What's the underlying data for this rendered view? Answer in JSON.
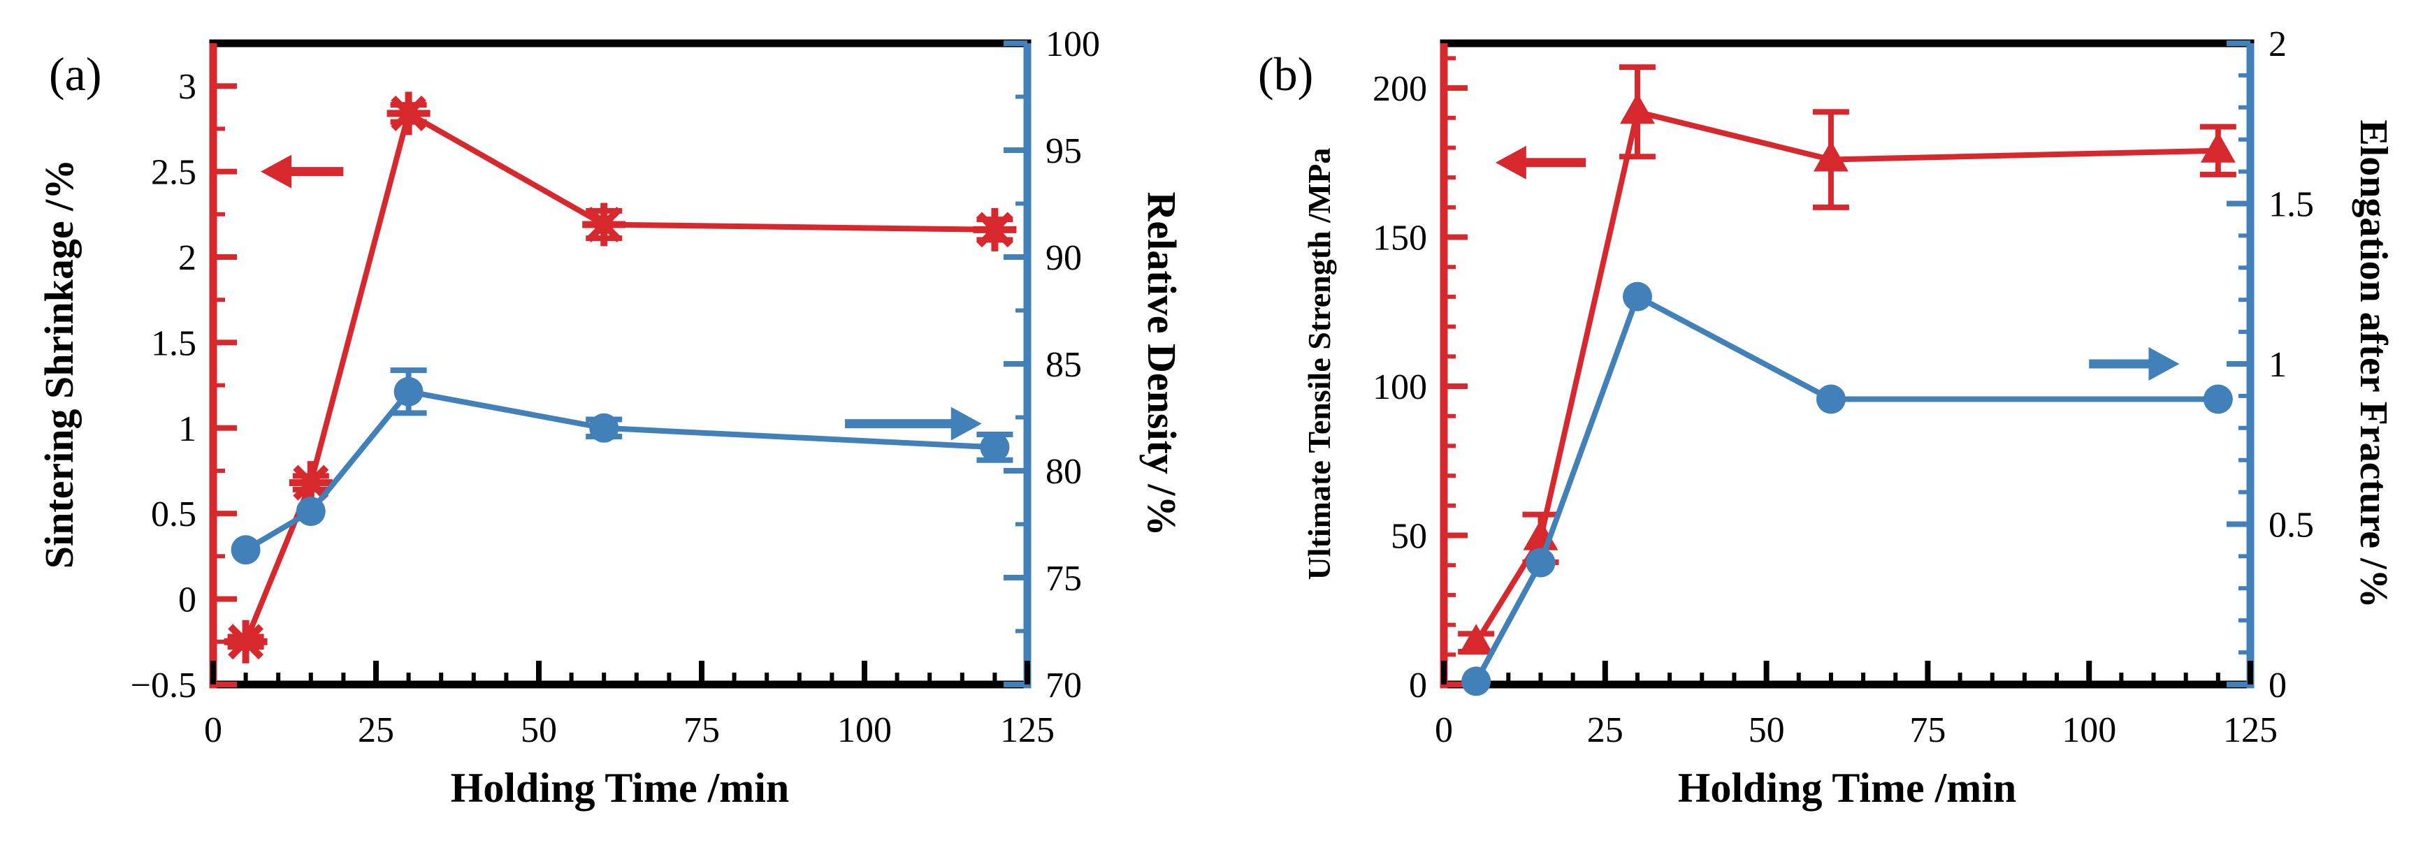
{
  "background": "#ffffff",
  "colors": {
    "red": "#d7282e",
    "blue": "#4180b9",
    "frame": "#000000",
    "text": "#000000"
  },
  "chart_data": [
    {
      "id": "a",
      "type": "line",
      "panel_label": "(a)",
      "xlabel": "Holding Time /min",
      "x_axis": {
        "lim": [
          0,
          125
        ],
        "major_values": [
          0,
          25,
          50,
          75,
          100,
          125
        ],
        "major_labels": [
          "0",
          "25",
          "50",
          "75",
          "100",
          "125"
        ],
        "minor_step": 5
      },
      "left_axis": {
        "title": "Sintering Shrinkage /%",
        "color": "red",
        "lim": [
          -0.5,
          3.25
        ],
        "major_values": [
          -0.5,
          0,
          0.5,
          1,
          1.5,
          2,
          2.5,
          3
        ],
        "major_labels": [
          "−0.5",
          "0",
          "0.5",
          "1",
          "1.5",
          "2",
          "2.5",
          "3"
        ],
        "minor_step": 0.25
      },
      "right_axis": {
        "title": "Relative Density /%",
        "color": "blue",
        "lim": [
          70,
          100
        ],
        "major_values": [
          70,
          75,
          80,
          85,
          90,
          95,
          100
        ],
        "major_labels": [
          "70",
          "75",
          "80",
          "85",
          "90",
          "95",
          "100"
        ],
        "minor_step": 2.5
      },
      "series": [
        {
          "name": "sintering-shrinkage",
          "axis": "left",
          "color": "red",
          "marker": "burst-star",
          "x": [
            5,
            15,
            30,
            60,
            120
          ],
          "y": [
            -0.25,
            0.68,
            2.84,
            2.19,
            2.16
          ],
          "yerr": [
            0.03,
            0.04,
            0.05,
            0.08,
            0.06
          ]
        },
        {
          "name": "relative-density",
          "axis": "right",
          "color": "blue",
          "marker": "circle",
          "x": [
            5,
            15,
            30,
            60,
            120
          ],
          "y": [
            76.3,
            78.1,
            83.7,
            82.0,
            81.1
          ],
          "yerr": [
            0,
            0,
            1.0,
            0.4,
            0.6
          ]
        }
      ],
      "arrows": [
        {
          "color": "red",
          "axis": "left",
          "y": 2.5,
          "x_tail": 20,
          "x_tip": 7.3,
          "dir": "left"
        },
        {
          "color": "blue",
          "axis": "right",
          "y": 82.2,
          "x_tail": 97,
          "x_tip": 118,
          "dir": "right"
        }
      ]
    },
    {
      "id": "b",
      "type": "line",
      "panel_label": "(b)",
      "xlabel": "Holding Time /min",
      "x_axis": {
        "lim": [
          0,
          125
        ],
        "major_values": [
          0,
          25,
          50,
          75,
          100,
          125
        ],
        "major_labels": [
          "0",
          "25",
          "50",
          "75",
          "100",
          "125"
        ],
        "minor_step": 5
      },
      "left_axis": {
        "title": "Ultimate Tensile Strength /MPa",
        "color": "red",
        "lim": [
          0,
          215
        ],
        "major_values": [
          0,
          50,
          100,
          150,
          200
        ],
        "major_labels": [
          "0",
          "50",
          "100",
          "150",
          "200"
        ],
        "minor_step": 10
      },
      "right_axis": {
        "title": "Elongation after Fracture /%",
        "color": "blue",
        "lim": [
          0,
          2
        ],
        "major_values": [
          0,
          0.5,
          1,
          1.5,
          2
        ],
        "major_labels": [
          "0",
          "0.5",
          "1",
          "1.5",
          "2"
        ],
        "minor_step": 0.1
      },
      "series": [
        {
          "name": "ultimate-tensile-strength",
          "axis": "left",
          "color": "red",
          "marker": "triangle",
          "x": [
            5,
            15,
            30,
            60,
            120
          ],
          "y": [
            14,
            49,
            192,
            176,
            179
          ],
          "yerr": [
            3,
            8,
            15,
            16,
            8
          ]
        },
        {
          "name": "elongation-after-fracture",
          "axis": "right",
          "color": "blue",
          "marker": "circle",
          "x": [
            5,
            15,
            30,
            60,
            120
          ],
          "y": [
            0.01,
            0.38,
            1.21,
            0.89,
            0.89
          ],
          "yerr": [
            0,
            0,
            0,
            0,
            0
          ]
        }
      ],
      "arrows": [
        {
          "color": "red",
          "axis": "left",
          "y": 175,
          "x_tail": 22,
          "x_tip": 8,
          "dir": "left"
        },
        {
          "color": "blue",
          "axis": "right",
          "y": 1.0,
          "x_tail": 100,
          "x_tip": 114,
          "dir": "right"
        }
      ]
    }
  ]
}
